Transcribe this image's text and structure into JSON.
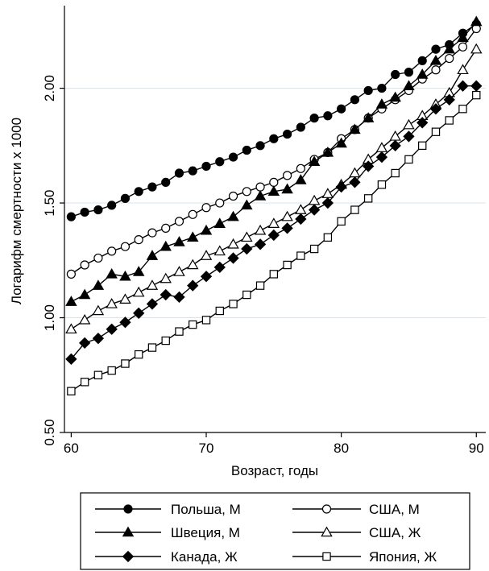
{
  "chart_data": {
    "type": "line",
    "xlabel": "Возраст, годы",
    "ylabel": "Логарифм смертности х 1000",
    "xlim": [
      59.5,
      90.7
    ],
    "ylim": [
      0.5,
      2.36
    ],
    "xticks": [
      60,
      70,
      80,
      90
    ],
    "xtick_labels": [
      "60",
      "70",
      "80",
      "90"
    ],
    "yticks": [
      0.5,
      1.0,
      1.5,
      2.0
    ],
    "ytick_labels": [
      "0.50",
      "1.00",
      "1.50",
      "2.00"
    ],
    "grid": "horizontal",
    "legend_position": "bottom",
    "x": [
      60,
      61,
      62,
      63,
      64,
      65,
      66,
      67,
      68,
      69,
      70,
      71,
      72,
      73,
      74,
      75,
      76,
      77,
      78,
      79,
      80,
      81,
      82,
      83,
      84,
      85,
      86,
      87,
      88,
      89,
      90
    ],
    "series": [
      {
        "name": "Польша, М",
        "marker": "circle-filled",
        "values": [
          1.44,
          1.46,
          1.47,
          1.49,
          1.52,
          1.55,
          1.57,
          1.59,
          1.63,
          1.64,
          1.66,
          1.68,
          1.7,
          1.73,
          1.75,
          1.78,
          1.8,
          1.83,
          1.87,
          1.88,
          1.91,
          1.95,
          1.99,
          2.0,
          2.06,
          2.07,
          2.12,
          2.17,
          2.19,
          2.24,
          2.28
        ]
      },
      {
        "name": "США, М",
        "marker": "circle-open",
        "values": [
          1.19,
          1.23,
          1.26,
          1.29,
          1.31,
          1.34,
          1.37,
          1.39,
          1.42,
          1.45,
          1.48,
          1.5,
          1.53,
          1.55,
          1.57,
          1.59,
          1.62,
          1.65,
          1.69,
          1.72,
          1.78,
          1.82,
          1.87,
          1.91,
          1.95,
          1.99,
          2.04,
          2.08,
          2.13,
          2.18,
          2.26
        ]
      },
      {
        "name": "Швеция, М",
        "marker": "triangle-filled",
        "values": [
          1.07,
          1.1,
          1.14,
          1.19,
          1.18,
          1.2,
          1.27,
          1.31,
          1.33,
          1.35,
          1.38,
          1.41,
          1.44,
          1.49,
          1.53,
          1.55,
          1.56,
          1.6,
          1.68,
          1.72,
          1.76,
          1.82,
          1.87,
          1.93,
          1.96,
          2.01,
          2.06,
          2.12,
          2.17,
          2.22,
          2.29
        ]
      },
      {
        "name": "США, Ж",
        "marker": "triangle-open",
        "values": [
          0.95,
          0.99,
          1.03,
          1.06,
          1.08,
          1.11,
          1.14,
          1.17,
          1.2,
          1.23,
          1.27,
          1.29,
          1.32,
          1.35,
          1.38,
          1.41,
          1.44,
          1.47,
          1.51,
          1.54,
          1.58,
          1.63,
          1.69,
          1.74,
          1.79,
          1.84,
          1.88,
          1.93,
          1.98,
          2.08,
          2.17
        ]
      },
      {
        "name": "Канада, Ж",
        "marker": "diamond-filled",
        "values": [
          0.82,
          0.89,
          0.91,
          0.95,
          0.98,
          1.02,
          1.06,
          1.1,
          1.09,
          1.14,
          1.18,
          1.22,
          1.26,
          1.3,
          1.32,
          1.36,
          1.39,
          1.43,
          1.47,
          1.5,
          1.57,
          1.59,
          1.66,
          1.7,
          1.75,
          1.79,
          1.85,
          1.91,
          1.95,
          2.01,
          2.01
        ]
      },
      {
        "name": "Япония, Ж",
        "marker": "square-open",
        "values": [
          0.68,
          0.72,
          0.75,
          0.77,
          0.8,
          0.84,
          0.87,
          0.9,
          0.94,
          0.97,
          0.99,
          1.03,
          1.06,
          1.1,
          1.14,
          1.19,
          1.23,
          1.27,
          1.3,
          1.35,
          1.42,
          1.47,
          1.52,
          1.58,
          1.63,
          1.69,
          1.75,
          1.81,
          1.86,
          1.91,
          1.97
        ]
      }
    ],
    "legend_order": [
      0,
      1,
      2,
      3,
      4,
      5
    ]
  }
}
